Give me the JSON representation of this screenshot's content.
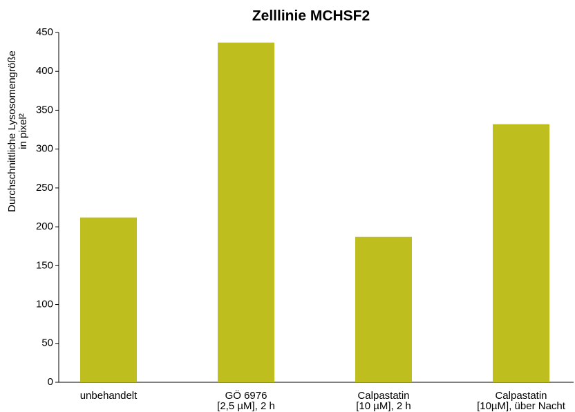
{
  "chart_data": {
    "type": "bar",
    "title": "Zelllinie MCHSF2",
    "ylabel": [
      "Durchschnittliche Lysosomengröße",
      "in pixel²"
    ],
    "categories": [
      [
        "unbehandelt"
      ],
      [
        "GÖ 6976",
        "[2,5 µM], 2 h"
      ],
      [
        "Calpastatin",
        "[10 µM], 2 h"
      ],
      [
        "Calpastatin",
        "[10µM], über Nacht"
      ]
    ],
    "values": [
      212,
      437,
      187,
      332
    ],
    "color": "#bfbe1f",
    "ylim": [
      0,
      450
    ],
    "yticks": [
      0,
      50,
      100,
      150,
      200,
      250,
      300,
      350,
      400,
      450
    ],
    "grid": false
  }
}
